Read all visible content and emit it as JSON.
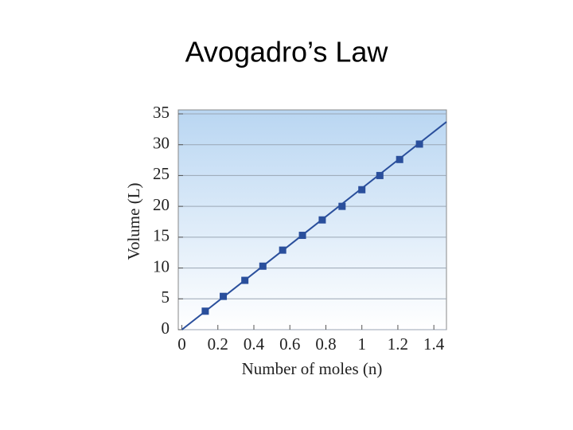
{
  "title": "Avogadro’s Law",
  "chart_data": {
    "type": "scatter",
    "x_label": "Number of moles (n)",
    "y_label": "Volume (L)",
    "xlim": [
      -0.02,
      1.47
    ],
    "ylim": [
      0,
      35
    ],
    "xticks": [
      0,
      0.2,
      0.4,
      0.6,
      0.8,
      1,
      1.2,
      1.4
    ],
    "yticks": [
      0,
      5,
      10,
      15,
      20,
      25,
      30,
      35
    ],
    "grid": true,
    "color": "#2a4f9c",
    "points": {
      "x": [
        0.13,
        0.23,
        0.35,
        0.45,
        0.56,
        0.67,
        0.78,
        0.89,
        1.0,
        1.1,
        1.21,
        1.32
      ],
      "y": [
        3,
        5.4,
        8,
        10.3,
        12.9,
        15.3,
        17.8,
        20,
        22.7,
        25,
        27.6,
        30.1
      ]
    },
    "line": {
      "x": [
        0,
        1.47
      ],
      "y": [
        0,
        33.7
      ]
    }
  }
}
